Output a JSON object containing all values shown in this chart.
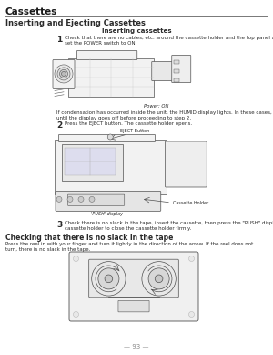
{
  "bg_color": "#ffffff",
  "page_number": "93",
  "header_title": "Cassettes",
  "section_title": "Inserting and Ejecting Cassettes",
  "subsection_title": "Inserting cassettes",
  "step1_num": "1",
  "step1_text": "Check that there are no cables, etc. around the cassette holder and the top panel and then\nset the POWER switch to ON.",
  "step1_caption": "Power: ON",
  "condensation_text": "If condensation has occurred inside the unit, the HUMID display lights. In these cases, wait\nuntil the display goes off before proceeding to step 2.",
  "step2_num": "2",
  "step2_text": "Press the EJECT button. The cassette holder opens.",
  "eject_label": "EJECT Button",
  "cassette_holder_label": "Cassette Holder",
  "push_display_label": "'PUSH' display",
  "step3_num": "3",
  "step3_text": "Check there is no slack in the tape, insert the cassette, then press the \"PUSH\" display on the\ncassette holder to close the cassette holder firmly.",
  "check_title": "Checking that there is no slack in the tape",
  "check_text": "Press the reel in with your finger and turn it lightly in the direction of the arrow. If the reel does not\nturn, there is no slack in the tape.",
  "text_color": "#2a2a2a",
  "line_color": "#555555",
  "diagram_color": "#505050",
  "header_color": "#1a1a1a"
}
